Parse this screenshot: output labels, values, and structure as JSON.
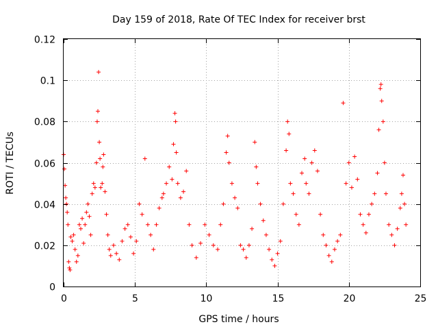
{
  "chart_data": {
    "type": "scatter",
    "title": "Day 159 of 2018, Rate Of TEC Index for receiver brst",
    "xlabel": "GPS time / hours",
    "ylabel": "ROTI / TECUs",
    "xlim": [
      0,
      25
    ],
    "ylim": [
      0,
      0.12
    ],
    "xticks": [
      0,
      5,
      10,
      15,
      20,
      25
    ],
    "yticks": [
      0,
      0.02,
      0.04,
      0.06,
      0.08,
      0.1,
      0.12
    ],
    "xtick_labels": [
      "0",
      "5",
      "10",
      "15",
      "20",
      "25"
    ],
    "ytick_labels": [
      "0",
      "0.02",
      "0.04",
      "0.06",
      "0.08",
      "0.1",
      "0.12"
    ],
    "grid": true,
    "marker": "plus",
    "color": "#ff0000",
    "series": [
      {
        "name": "ROTI",
        "points": [
          [
            0.0,
            0.064
          ],
          [
            0.05,
            0.057
          ],
          [
            0.1,
            0.049
          ],
          [
            0.15,
            0.043
          ],
          [
            0.2,
            0.04
          ],
          [
            0.25,
            0.036
          ],
          [
            0.3,
            0.03
          ],
          [
            0.35,
            0.012
          ],
          [
            0.4,
            0.009
          ],
          [
            0.45,
            0.008
          ],
          [
            0.5,
            0.024
          ],
          [
            0.6,
            0.022
          ],
          [
            0.7,
            0.025
          ],
          [
            0.8,
            0.018
          ],
          [
            0.9,
            0.012
          ],
          [
            1.0,
            0.015
          ],
          [
            1.1,
            0.03
          ],
          [
            1.2,
            0.028
          ],
          [
            1.3,
            0.033
          ],
          [
            1.4,
            0.021
          ],
          [
            1.5,
            0.03
          ],
          [
            1.6,
            0.036
          ],
          [
            1.7,
            0.04
          ],
          [
            1.8,
            0.034
          ],
          [
            1.9,
            0.025
          ],
          [
            2.0,
            0.045
          ],
          [
            2.1,
            0.05
          ],
          [
            2.2,
            0.048
          ],
          [
            2.3,
            0.06
          ],
          [
            2.35,
            0.08
          ],
          [
            2.4,
            0.085
          ],
          [
            2.45,
            0.104
          ],
          [
            2.5,
            0.07
          ],
          [
            2.55,
            0.062
          ],
          [
            2.6,
            0.048
          ],
          [
            2.7,
            0.05
          ],
          [
            2.75,
            0.058
          ],
          [
            2.8,
            0.064
          ],
          [
            2.9,
            0.046
          ],
          [
            3.0,
            0.035
          ],
          [
            3.1,
            0.025
          ],
          [
            3.2,
            0.018
          ],
          [
            3.3,
            0.015
          ],
          [
            3.5,
            0.02
          ],
          [
            3.7,
            0.016
          ],
          [
            3.9,
            0.013
          ],
          [
            4.1,
            0.022
          ],
          [
            4.3,
            0.028
          ],
          [
            4.5,
            0.03
          ],
          [
            4.7,
            0.024
          ],
          [
            4.9,
            0.016
          ],
          [
            5.1,
            0.022
          ],
          [
            5.3,
            0.04
          ],
          [
            5.5,
            0.035
          ],
          [
            5.7,
            0.062
          ],
          [
            5.9,
            0.03
          ],
          [
            6.1,
            0.025
          ],
          [
            6.3,
            0.018
          ],
          [
            6.5,
            0.03
          ],
          [
            6.7,
            0.038
          ],
          [
            6.9,
            0.043
          ],
          [
            7.0,
            0.045
          ],
          [
            7.2,
            0.05
          ],
          [
            7.4,
            0.058
          ],
          [
            7.6,
            0.052
          ],
          [
            7.7,
            0.069
          ],
          [
            7.8,
            0.084
          ],
          [
            7.85,
            0.08
          ],
          [
            7.9,
            0.065
          ],
          [
            8.0,
            0.05
          ],
          [
            8.2,
            0.043
          ],
          [
            8.4,
            0.046
          ],
          [
            8.6,
            0.056
          ],
          [
            8.8,
            0.03
          ],
          [
            9.0,
            0.02
          ],
          [
            9.3,
            0.014
          ],
          [
            9.6,
            0.021
          ],
          [
            9.9,
            0.03
          ],
          [
            10.2,
            0.025
          ],
          [
            10.5,
            0.02
          ],
          [
            10.8,
            0.018
          ],
          [
            11.0,
            0.03
          ],
          [
            11.2,
            0.04
          ],
          [
            11.4,
            0.065
          ],
          [
            11.5,
            0.073
          ],
          [
            11.6,
            0.06
          ],
          [
            11.8,
            0.05
          ],
          [
            12.0,
            0.043
          ],
          [
            12.2,
            0.038
          ],
          [
            12.4,
            0.02
          ],
          [
            12.6,
            0.018
          ],
          [
            12.8,
            0.014
          ],
          [
            13.0,
            0.02
          ],
          [
            13.2,
            0.028
          ],
          [
            13.4,
            0.07
          ],
          [
            13.5,
            0.058
          ],
          [
            13.6,
            0.05
          ],
          [
            13.8,
            0.04
          ],
          [
            14.0,
            0.032
          ],
          [
            14.2,
            0.025
          ],
          [
            14.4,
            0.018
          ],
          [
            14.6,
            0.013
          ],
          [
            14.8,
            0.01
          ],
          [
            15.0,
            0.016
          ],
          [
            15.2,
            0.022
          ],
          [
            15.4,
            0.04
          ],
          [
            15.6,
            0.066
          ],
          [
            15.7,
            0.08
          ],
          [
            15.8,
            0.074
          ],
          [
            15.9,
            0.05
          ],
          [
            16.1,
            0.045
          ],
          [
            16.3,
            0.035
          ],
          [
            16.5,
            0.03
          ],
          [
            16.7,
            0.055
          ],
          [
            16.9,
            0.062
          ],
          [
            17.0,
            0.05
          ],
          [
            17.2,
            0.045
          ],
          [
            17.4,
            0.06
          ],
          [
            17.6,
            0.066
          ],
          [
            17.8,
            0.056
          ],
          [
            18.0,
            0.035
          ],
          [
            18.2,
            0.025
          ],
          [
            18.4,
            0.02
          ],
          [
            18.6,
            0.015
          ],
          [
            18.8,
            0.012
          ],
          [
            19.0,
            0.018
          ],
          [
            19.2,
            0.022
          ],
          [
            19.4,
            0.025
          ],
          [
            19.6,
            0.089
          ],
          [
            19.8,
            0.05
          ],
          [
            20.0,
            0.06
          ],
          [
            20.2,
            0.048
          ],
          [
            20.4,
            0.063
          ],
          [
            20.6,
            0.052
          ],
          [
            20.8,
            0.035
          ],
          [
            21.0,
            0.03
          ],
          [
            21.2,
            0.026
          ],
          [
            21.4,
            0.035
          ],
          [
            21.6,
            0.04
          ],
          [
            21.8,
            0.045
          ],
          [
            22.0,
            0.055
          ],
          [
            22.1,
            0.076
          ],
          [
            22.2,
            0.096
          ],
          [
            22.25,
            0.098
          ],
          [
            22.3,
            0.09
          ],
          [
            22.4,
            0.08
          ],
          [
            22.5,
            0.06
          ],
          [
            22.6,
            0.045
          ],
          [
            22.8,
            0.03
          ],
          [
            23.0,
            0.025
          ],
          [
            23.2,
            0.02
          ],
          [
            23.4,
            0.028
          ],
          [
            23.6,
            0.038
          ],
          [
            23.7,
            0.045
          ],
          [
            23.8,
            0.054
          ],
          [
            23.9,
            0.04
          ],
          [
            24.0,
            0.03
          ]
        ]
      }
    ]
  }
}
